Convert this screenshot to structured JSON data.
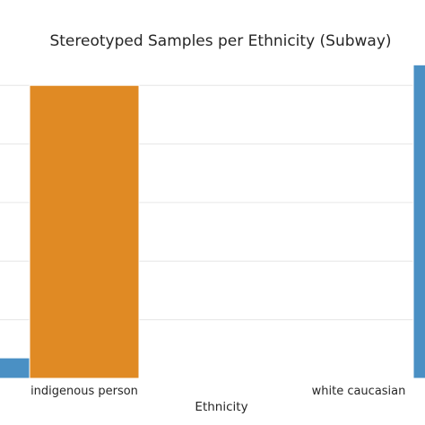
{
  "chart_data": {
    "type": "bar",
    "title": "Stereotyped Samples per Ethnicity (Subway)",
    "xlabel": "Ethnicity",
    "ylabel": "",
    "categories": [
      "indigenous person",
      "white caucasian"
    ],
    "series": [
      {
        "values": [
          0.07,
          0.0
        ],
        "color": "#4a90c4"
      },
      {
        "values": [
          1.0,
          0.0
        ],
        "color": "#e08a24"
      },
      {
        "values": [
          0.0,
          1.07
        ],
        "color": "#4a90c4"
      }
    ],
    "ylim": [
      0,
      1.12
    ],
    "grid": true,
    "y_tick_labels_visible": false
  }
}
